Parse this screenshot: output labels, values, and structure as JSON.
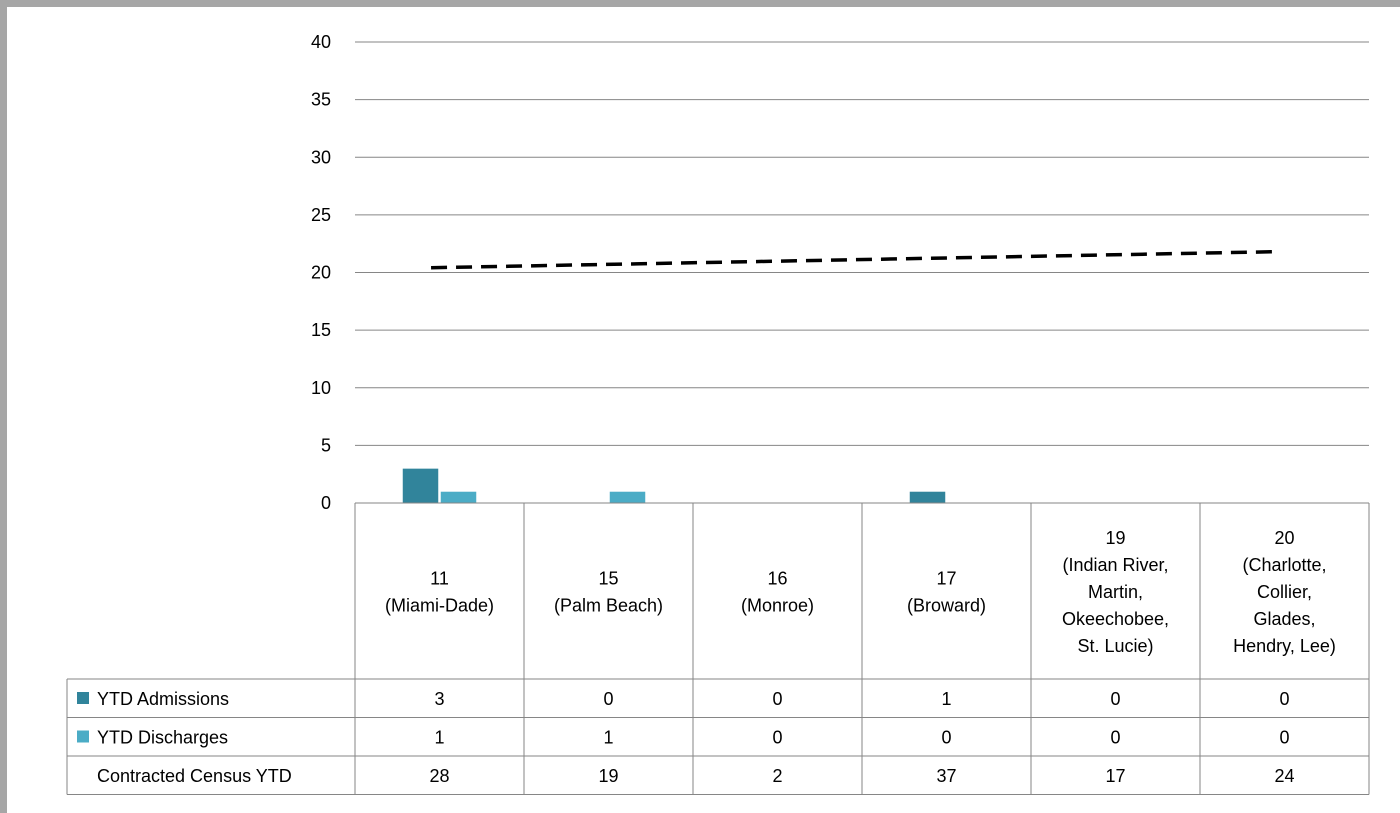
{
  "chart_data": {
    "type": "bar",
    "title": "",
    "xlabel": "",
    "ylabel": "",
    "ylim": [
      0,
      40
    ],
    "yticks": [
      0,
      5,
      10,
      15,
      20,
      25,
      30,
      35,
      40
    ],
    "grid": true,
    "legend": "data-table",
    "categories": [
      [
        "11",
        "(Miami-Dade)"
      ],
      [
        "15",
        "(Palm Beach)"
      ],
      [
        "16",
        "(Monroe)"
      ],
      [
        "17",
        "(Broward)"
      ],
      [
        "19",
        "(Indian River,",
        "Martin,",
        "Okeechobee,",
        "St. Lucie)"
      ],
      [
        "20",
        "(Charlotte,",
        "Collier,",
        "Glades,",
        "Hendry, Lee)"
      ]
    ],
    "series": [
      {
        "name": "YTD Admissions",
        "type": "bar",
        "color": "#31849b",
        "values": [
          3,
          0,
          0,
          1,
          0,
          0
        ]
      },
      {
        "name": "YTD Discharges",
        "type": "bar",
        "color": "#4bacc6",
        "values": [
          1,
          1,
          0,
          0,
          0,
          0
        ]
      },
      {
        "name": "Contracted Census YTD",
        "type": "line",
        "color": "#000000",
        "values": [
          28,
          19,
          2,
          37,
          17,
          24
        ]
      }
    ],
    "trendline": {
      "style": "dashed",
      "color": "#000000",
      "start": 20.5,
      "end": 21.8
    }
  }
}
